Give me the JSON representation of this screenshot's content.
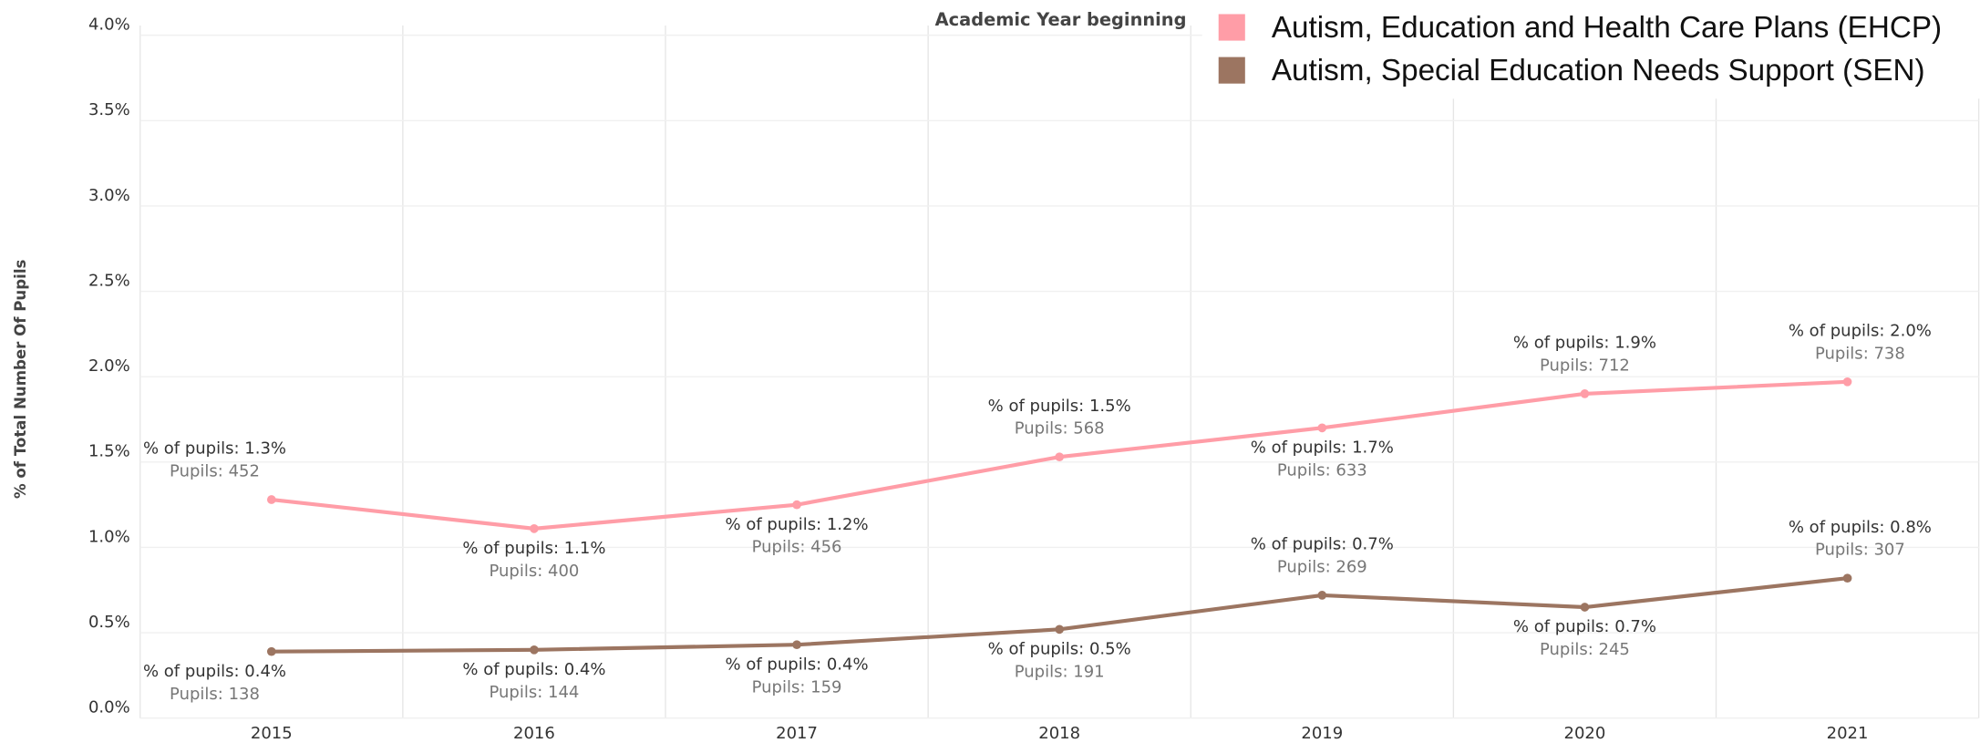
{
  "chart_data": {
    "type": "line",
    "x_label": "Academic Year beginning",
    "y_label": "% of Total Number Of Pupils",
    "categories": [
      "2015",
      "2016",
      "2017",
      "2018",
      "2019",
      "2020",
      "2021"
    ],
    "ylim": [
      0,
      4.1
    ],
    "yticks": [
      {
        "value": 0,
        "label": "0.0%"
      },
      {
        "value": 0.5,
        "label": "0.5%"
      },
      {
        "value": 1,
        "label": "1.0%"
      },
      {
        "value": 1.5,
        "label": "1.5%"
      },
      {
        "value": 2,
        "label": "2.0%"
      },
      {
        "value": 2.5,
        "label": "2.5%"
      },
      {
        "value": 3,
        "label": "3.0%"
      },
      {
        "value": 3.5,
        "label": "3.5%"
      },
      {
        "value": 4,
        "label": "4.0%"
      }
    ],
    "grid": true,
    "legend": "top-right",
    "series": [
      {
        "name": "Autism, Education and Health Care Plans (EHCP)",
        "color": "#ff9da7",
        "values": [
          1.28,
          1.11,
          1.25,
          1.53,
          1.7,
          1.9,
          1.97
        ],
        "value_labels": [
          "% of pupils: 1.3%",
          "% of pupils: 1.1%",
          "% of pupils: 1.2%",
          "% of pupils: 1.5%",
          "% of pupils: 1.7%",
          "% of pupils: 1.9%",
          "% of pupils: 2.0%"
        ],
        "pupil_labels": [
          "Pupils: 452",
          "Pupils: 400",
          "Pupils: 456",
          "Pupils: 568",
          "Pupils: 633",
          "Pupils: 712",
          "Pupils: 738"
        ]
      },
      {
        "name": "Autism, Special Education Needs Support (SEN)",
        "color": "#9c7561",
        "values": [
          0.39,
          0.4,
          0.43,
          0.52,
          0.72,
          0.65,
          0.82
        ],
        "value_labels": [
          "% of pupils: 0.4%",
          "% of pupils: 0.4%",
          "% of pupils: 0.4%",
          "% of pupils: 0.5%",
          "% of pupils: 0.7%",
          "% of pupils: 0.7%",
          "% of pupils: 0.8%"
        ],
        "pupil_labels": [
          "Pupils: 138",
          "Pupils: 144",
          "Pupils: 159",
          "Pupils: 191",
          "Pupils: 269",
          "Pupils: 245",
          "Pupils: 307"
        ]
      }
    ]
  }
}
